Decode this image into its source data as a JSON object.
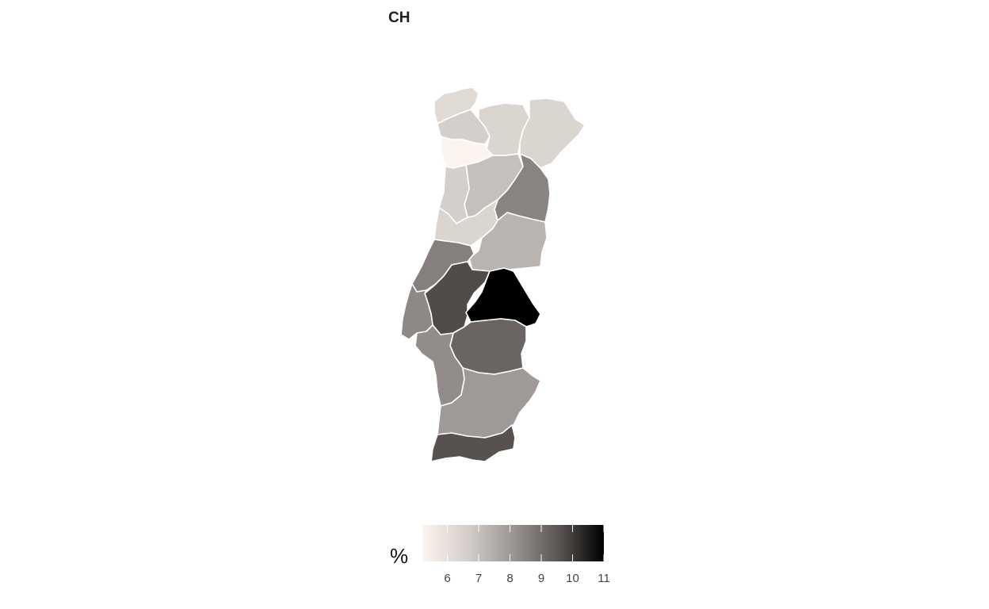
{
  "title": "CH",
  "legend": {
    "title": "%",
    "min": 5.2,
    "max": 11,
    "ticks": [
      "6",
      "7",
      "8",
      "9",
      "10",
      "11"
    ],
    "color_low": "#fcf4ef",
    "color_high": "#000000"
  },
  "regions": [
    {
      "id": "r01",
      "value": 6.2
    },
    {
      "id": "r02",
      "value": 6.6
    },
    {
      "id": "r03",
      "value": 6.4
    },
    {
      "id": "r04",
      "value": 6.4
    },
    {
      "id": "r05",
      "value": 5.2
    },
    {
      "id": "r06",
      "value": 7.0
    },
    {
      "id": "r07",
      "value": 8.5
    },
    {
      "id": "r08",
      "value": 6.6
    },
    {
      "id": "r09",
      "value": 6.4
    },
    {
      "id": "r10",
      "value": 7.3
    },
    {
      "id": "r11",
      "value": 8.6
    },
    {
      "id": "r12",
      "value": 9.7
    },
    {
      "id": "r13",
      "value": 11.0
    },
    {
      "id": "r14",
      "value": 8.4
    },
    {
      "id": "r15",
      "value": 9.2
    },
    {
      "id": "r16",
      "value": 8.3
    },
    {
      "id": "r17",
      "value": 8.0
    },
    {
      "id": "r18",
      "value": 9.6
    }
  ]
}
